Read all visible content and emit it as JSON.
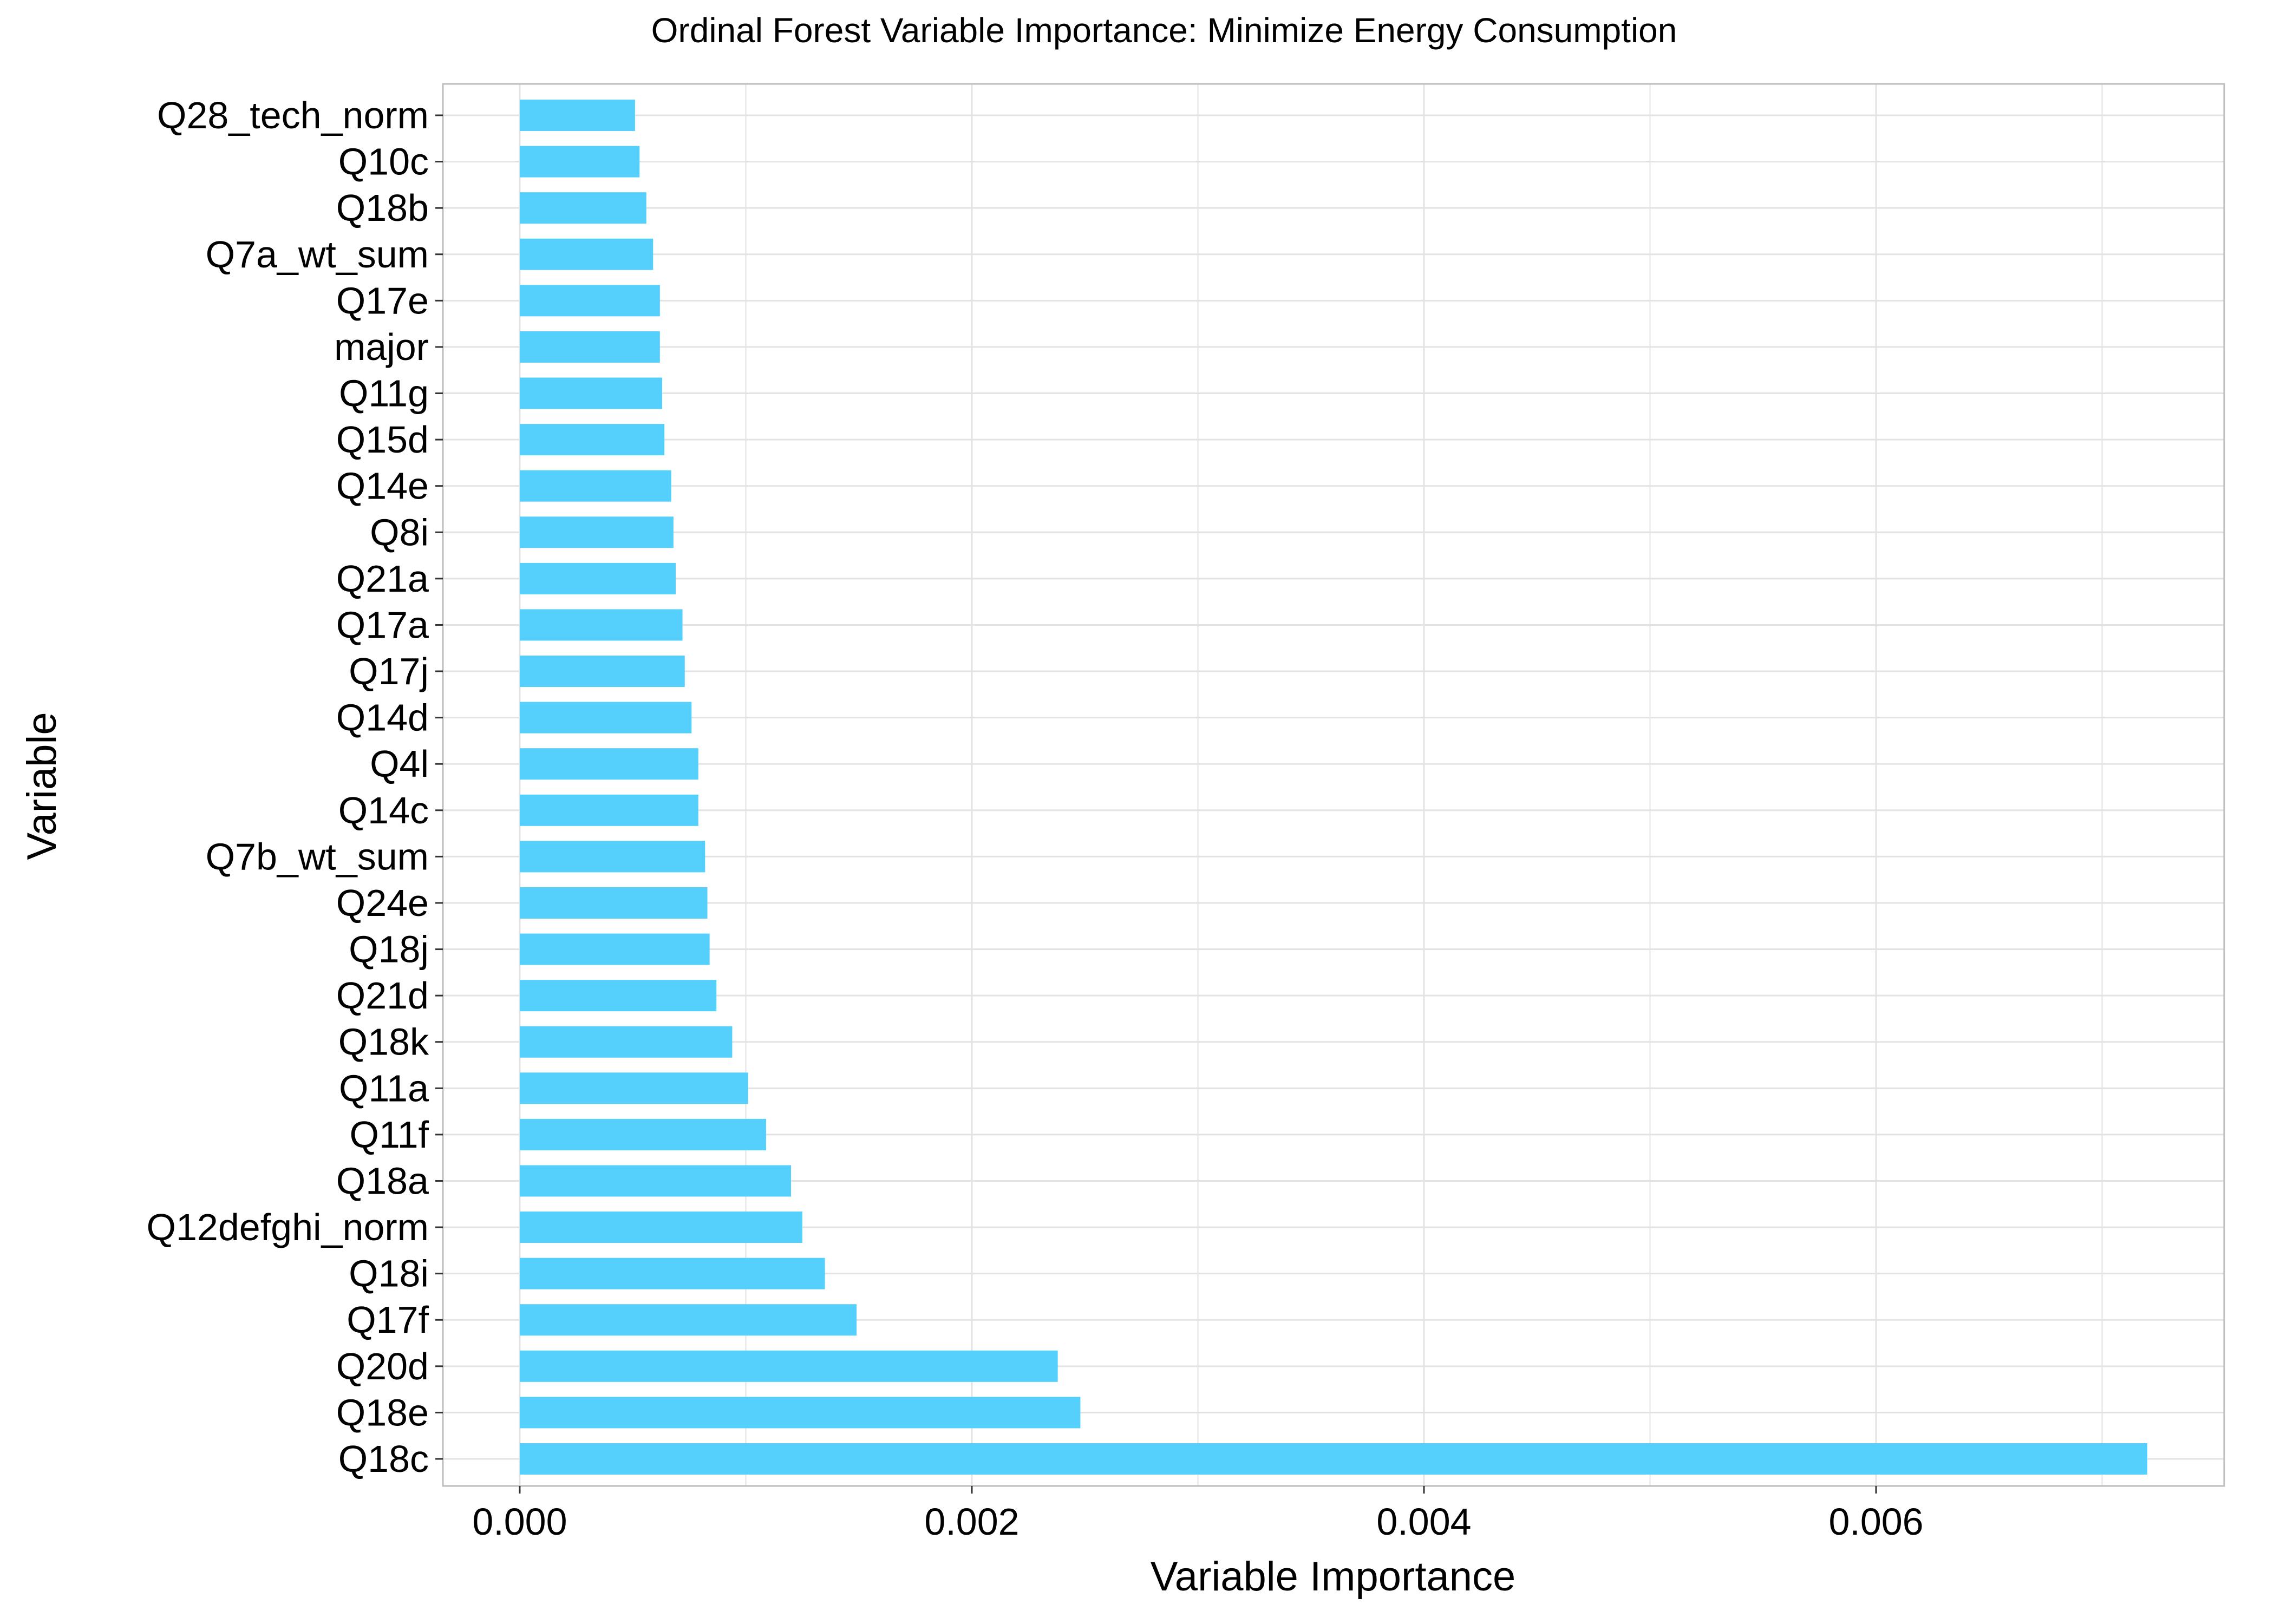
{
  "chart_data": {
    "type": "bar",
    "orientation": "horizontal",
    "title": "Ordinal Forest Variable Importance: Minimize Energy Consumption",
    "xlabel": "Variable Importance",
    "ylabel": "Variable",
    "xlim": [
      -0.00034,
      0.00754
    ],
    "xticks": [
      0.0,
      0.002,
      0.004,
      0.006
    ],
    "xtick_labels": [
      "0.000",
      "0.002",
      "0.004",
      "0.006"
    ],
    "grid": true,
    "legend": "none",
    "categories": [
      "Q28_tech_norm",
      "Q10c",
      "Q18b",
      "Q7a_wt_sum",
      "Q17e",
      "major",
      "Q11g",
      "Q15d",
      "Q14e",
      "Q8i",
      "Q21a",
      "Q17a",
      "Q17j",
      "Q14d",
      "Q4l",
      "Q14c",
      "Q7b_wt_sum",
      "Q24e",
      "Q18j",
      "Q21d",
      "Q18k",
      "Q11a",
      "Q11f",
      "Q18a",
      "Q12defghi_norm",
      "Q18i",
      "Q17f",
      "Q20d",
      "Q18e",
      "Q18c"
    ],
    "values": [
      0.00051,
      0.00053,
      0.00056,
      0.00059,
      0.00062,
      0.00062,
      0.00063,
      0.00064,
      0.00067,
      0.00068,
      0.00069,
      0.00072,
      0.00073,
      0.00076,
      0.00079,
      0.00079,
      0.00082,
      0.00083,
      0.00084,
      0.00087,
      0.00094,
      0.00101,
      0.00109,
      0.0012,
      0.00125,
      0.00135,
      0.00149,
      0.00238,
      0.00248,
      0.0072
    ],
    "bar_color": "#55CFFC",
    "grid_color": "#E3E3E3",
    "frame_color": "#BDBDBD"
  }
}
